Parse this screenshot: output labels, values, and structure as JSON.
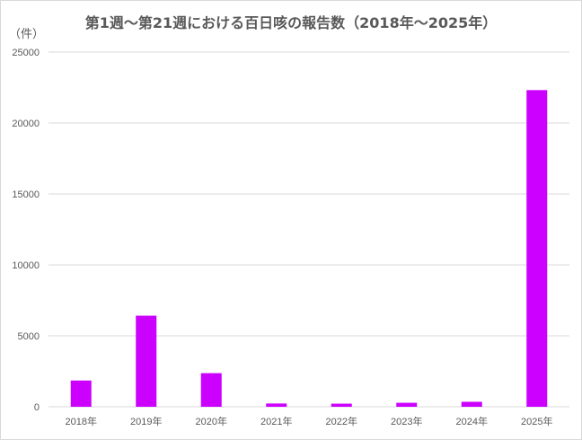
{
  "chart_data": {
    "type": "bar",
    "title": "第1週～第21週における百日咳の報告数（2018年～2025年）",
    "unit_label": "（件）",
    "categories": [
      "2018年",
      "2019年",
      "2020年",
      "2021年",
      "2022年",
      "2023年",
      "2024年",
      "2025年"
    ],
    "values": [
      1850,
      6420,
      2370,
      230,
      220,
      280,
      350,
      22320
    ],
    "ylim": [
      0,
      25000
    ],
    "y_ticks": [
      "0",
      "5000",
      "10000",
      "15000",
      "20000",
      "25000"
    ],
    "bar_color": "#cc00ff",
    "grid": true,
    "legend": "none"
  }
}
